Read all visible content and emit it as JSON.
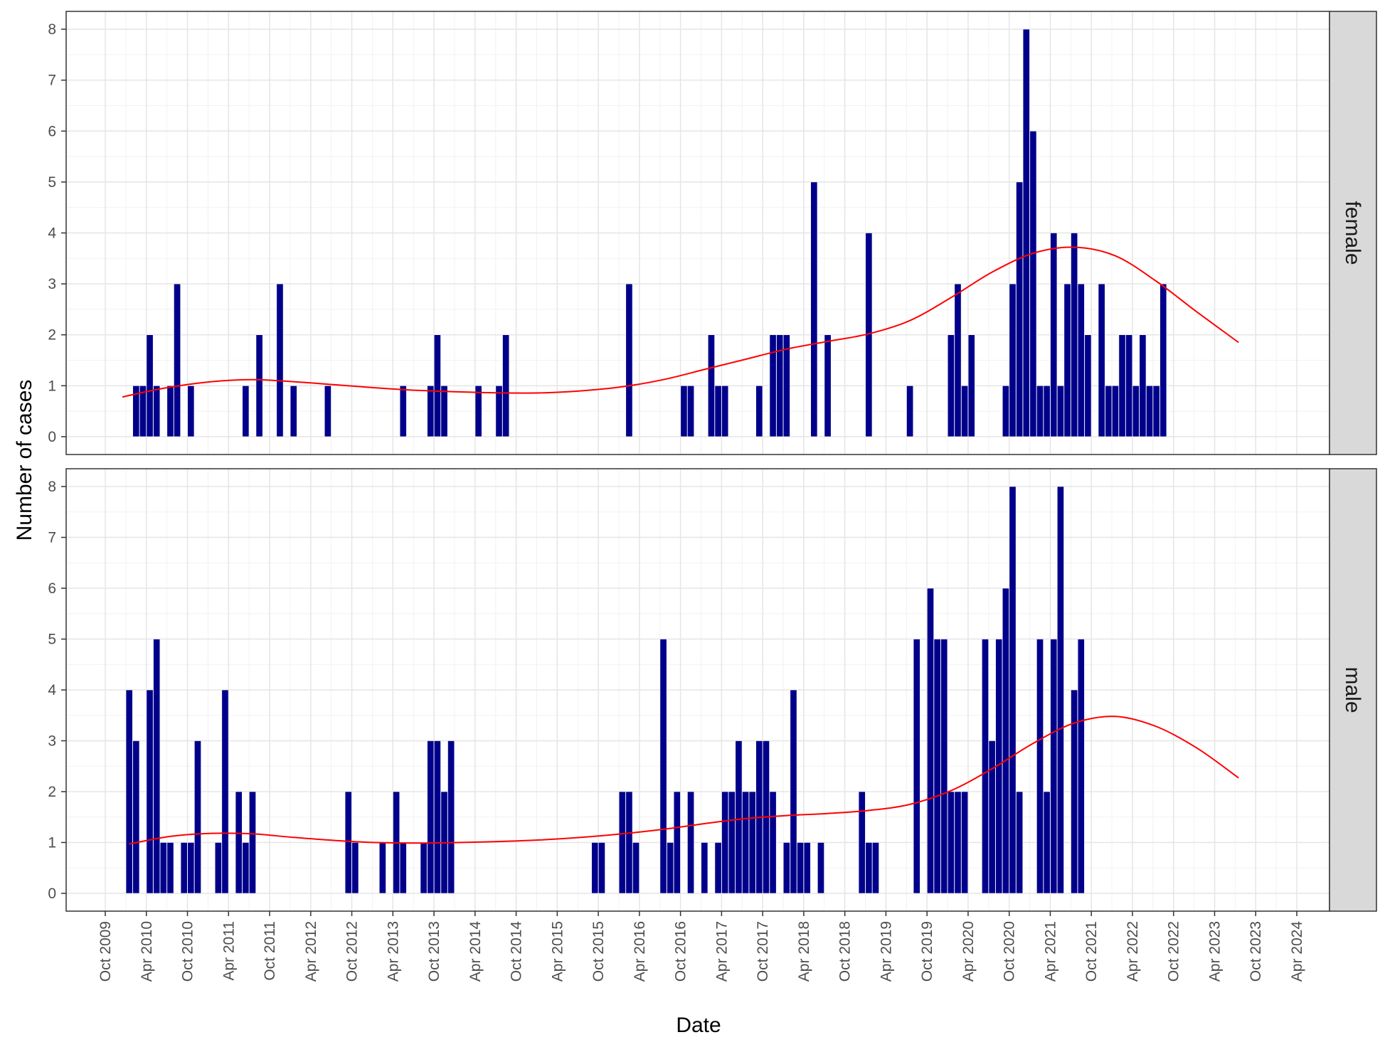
{
  "chart_data": {
    "type": "bar",
    "xlabel": "Date",
    "ylabel": "Number of cases",
    "x_tick_labels": [
      "Oct 2009",
      "Apr 2010",
      "Oct 2010",
      "Apr 2011",
      "Oct 2011",
      "Apr 2012",
      "Oct 2012",
      "Apr 2013",
      "Oct 2013",
      "Apr 2014",
      "Oct 2014",
      "Apr 2015",
      "Oct 2015",
      "Apr 2016",
      "Oct 2016",
      "Apr 2017",
      "Oct 2017",
      "Apr 2018",
      "Oct 2018",
      "Apr 2019",
      "Oct 2019",
      "Apr 2020",
      "Oct 2020",
      "Apr 2021",
      "Oct 2021",
      "Apr 2022",
      "Oct 2022",
      "Apr 2023",
      "Oct 2023",
      "Apr 2024"
    ],
    "x_range": [
      "2009-09",
      "2024-06"
    ],
    "y_ticks": [
      0,
      1,
      2,
      3,
      4,
      5,
      6,
      7,
      8
    ],
    "ylim": [
      -0.35,
      8.35
    ],
    "grid": true,
    "bar_color": "#00008B",
    "trend_color": "#FF0000",
    "facets": [
      {
        "label": "female",
        "bars": [
          [
            "2010-02",
            1
          ],
          [
            "2010-03",
            1
          ],
          [
            "2010-04",
            2
          ],
          [
            "2010-05",
            1
          ],
          [
            "2010-07",
            1
          ],
          [
            "2010-08",
            3
          ],
          [
            "2010-10",
            1
          ],
          [
            "2011-06",
            1
          ],
          [
            "2011-08",
            2
          ],
          [
            "2011-11",
            3
          ],
          [
            "2012-01",
            1
          ],
          [
            "2012-06",
            1
          ],
          [
            "2013-05",
            1
          ],
          [
            "2013-09",
            1
          ],
          [
            "2013-10",
            2
          ],
          [
            "2013-11",
            1
          ],
          [
            "2014-04",
            1
          ],
          [
            "2014-07",
            1
          ],
          [
            "2014-08",
            2
          ],
          [
            "2016-02",
            3
          ],
          [
            "2016-10",
            1
          ],
          [
            "2016-11",
            1
          ],
          [
            "2017-02",
            2
          ],
          [
            "2017-03",
            1
          ],
          [
            "2017-04",
            1
          ],
          [
            "2017-09",
            1
          ],
          [
            "2017-11",
            2
          ],
          [
            "2017-12",
            2
          ],
          [
            "2018-01",
            2
          ],
          [
            "2018-05",
            5
          ],
          [
            "2018-07",
            2
          ],
          [
            "2019-01",
            4
          ],
          [
            "2019-07",
            1
          ],
          [
            "2020-01",
            2
          ],
          [
            "2020-02",
            3
          ],
          [
            "2020-03",
            1
          ],
          [
            "2020-04",
            2
          ],
          [
            "2020-09",
            1
          ],
          [
            "2020-10",
            3
          ],
          [
            "2020-11",
            5
          ],
          [
            "2020-12",
            8
          ],
          [
            "2021-01",
            6
          ],
          [
            "2021-02",
            1
          ],
          [
            "2021-03",
            1
          ],
          [
            "2021-04",
            4
          ],
          [
            "2021-05",
            1
          ],
          [
            "2021-06",
            3
          ],
          [
            "2021-07",
            4
          ],
          [
            "2021-08",
            3
          ],
          [
            "2021-09",
            2
          ],
          [
            "2021-11",
            3
          ],
          [
            "2021-12",
            1
          ],
          [
            "2022-01",
            1
          ],
          [
            "2022-02",
            2
          ],
          [
            "2022-03",
            2
          ],
          [
            "2022-04",
            1
          ],
          [
            "2022-05",
            2
          ],
          [
            "2022-06",
            1
          ],
          [
            "2022-07",
            1
          ],
          [
            "2022-08",
            3
          ]
        ],
        "trend": [
          [
            "2009-12",
            0.78
          ],
          [
            "2010-06",
            0.95
          ],
          [
            "2011-01",
            1.08
          ],
          [
            "2011-07",
            1.12
          ],
          [
            "2012-01",
            1.08
          ],
          [
            "2012-07",
            1.02
          ],
          [
            "2013-01",
            0.96
          ],
          [
            "2013-07",
            0.91
          ],
          [
            "2014-01",
            0.88
          ],
          [
            "2014-07",
            0.86
          ],
          [
            "2015-01",
            0.86
          ],
          [
            "2015-07",
            0.9
          ],
          [
            "2016-01",
            0.98
          ],
          [
            "2016-07",
            1.12
          ],
          [
            "2017-01",
            1.32
          ],
          [
            "2017-07",
            1.52
          ],
          [
            "2018-01",
            1.72
          ],
          [
            "2018-07",
            1.87
          ],
          [
            "2019-01",
            2.02
          ],
          [
            "2019-07",
            2.28
          ],
          [
            "2020-01",
            2.73
          ],
          [
            "2020-07",
            3.23
          ],
          [
            "2021-01",
            3.6
          ],
          [
            "2021-07",
            3.72
          ],
          [
            "2022-01",
            3.55
          ],
          [
            "2022-07",
            3.05
          ],
          [
            "2023-01",
            2.44
          ],
          [
            "2023-07",
            1.85
          ]
        ]
      },
      {
        "label": "male",
        "bars": [
          [
            "2010-01",
            4
          ],
          [
            "2010-02",
            3
          ],
          [
            "2010-04",
            4
          ],
          [
            "2010-05",
            5
          ],
          [
            "2010-06",
            1
          ],
          [
            "2010-07",
            1
          ],
          [
            "2010-09",
            1
          ],
          [
            "2010-10",
            1
          ],
          [
            "2010-11",
            3
          ],
          [
            "2011-02",
            1
          ],
          [
            "2011-03",
            4
          ],
          [
            "2011-05",
            2
          ],
          [
            "2011-06",
            1
          ],
          [
            "2011-07",
            2
          ],
          [
            "2012-09",
            2
          ],
          [
            "2012-10",
            1
          ],
          [
            "2013-02",
            1
          ],
          [
            "2013-04",
            2
          ],
          [
            "2013-05",
            1
          ],
          [
            "2013-08",
            1
          ],
          [
            "2013-09",
            3
          ],
          [
            "2013-10",
            3
          ],
          [
            "2013-11",
            2
          ],
          [
            "2013-12",
            3
          ],
          [
            "2015-09",
            1
          ],
          [
            "2015-10",
            1
          ],
          [
            "2016-01",
            2
          ],
          [
            "2016-02",
            2
          ],
          [
            "2016-03",
            1
          ],
          [
            "2016-07",
            5
          ],
          [
            "2016-08",
            1
          ],
          [
            "2016-09",
            2
          ],
          [
            "2016-11",
            2
          ],
          [
            "2017-01",
            1
          ],
          [
            "2017-03",
            1
          ],
          [
            "2017-04",
            2
          ],
          [
            "2017-05",
            2
          ],
          [
            "2017-06",
            3
          ],
          [
            "2017-07",
            2
          ],
          [
            "2017-08",
            2
          ],
          [
            "2017-09",
            3
          ],
          [
            "2017-10",
            3
          ],
          [
            "2017-11",
            2
          ],
          [
            "2018-01",
            1
          ],
          [
            "2018-02",
            4
          ],
          [
            "2018-03",
            1
          ],
          [
            "2018-04",
            1
          ],
          [
            "2018-06",
            1
          ],
          [
            "2018-12",
            2
          ],
          [
            "2019-01",
            1
          ],
          [
            "2019-02",
            1
          ],
          [
            "2019-08",
            5
          ],
          [
            "2019-10",
            6
          ],
          [
            "2019-11",
            5
          ],
          [
            "2019-12",
            5
          ],
          [
            "2020-01",
            2
          ],
          [
            "2020-02",
            2
          ],
          [
            "2020-03",
            2
          ],
          [
            "2020-06",
            5
          ],
          [
            "2020-07",
            3
          ],
          [
            "2020-08",
            5
          ],
          [
            "2020-09",
            6
          ],
          [
            "2020-10",
            8
          ],
          [
            "2020-11",
            2
          ],
          [
            "2021-02",
            5
          ],
          [
            "2021-03",
            2
          ],
          [
            "2021-04",
            5
          ],
          [
            "2021-05",
            8
          ],
          [
            "2021-07",
            4
          ],
          [
            "2021-08",
            5
          ]
        ],
        "trend": [
          [
            "2010-01",
            0.97
          ],
          [
            "2010-07",
            1.12
          ],
          [
            "2011-01",
            1.18
          ],
          [
            "2011-07",
            1.17
          ],
          [
            "2012-01",
            1.1
          ],
          [
            "2012-07",
            1.04
          ],
          [
            "2013-01",
            1.0
          ],
          [
            "2013-07",
            0.99
          ],
          [
            "2014-01",
            1.0
          ],
          [
            "2014-07",
            1.02
          ],
          [
            "2015-01",
            1.05
          ],
          [
            "2015-07",
            1.1
          ],
          [
            "2016-01",
            1.17
          ],
          [
            "2016-07",
            1.26
          ],
          [
            "2017-01",
            1.37
          ],
          [
            "2017-07",
            1.47
          ],
          [
            "2018-01",
            1.53
          ],
          [
            "2018-07",
            1.57
          ],
          [
            "2019-01",
            1.63
          ],
          [
            "2019-07",
            1.75
          ],
          [
            "2020-01",
            2.02
          ],
          [
            "2020-07",
            2.45
          ],
          [
            "2021-01",
            2.95
          ],
          [
            "2021-07",
            3.35
          ],
          [
            "2022-01",
            3.48
          ],
          [
            "2022-07",
            3.28
          ],
          [
            "2023-01",
            2.85
          ],
          [
            "2023-07",
            2.27
          ]
        ]
      }
    ]
  }
}
